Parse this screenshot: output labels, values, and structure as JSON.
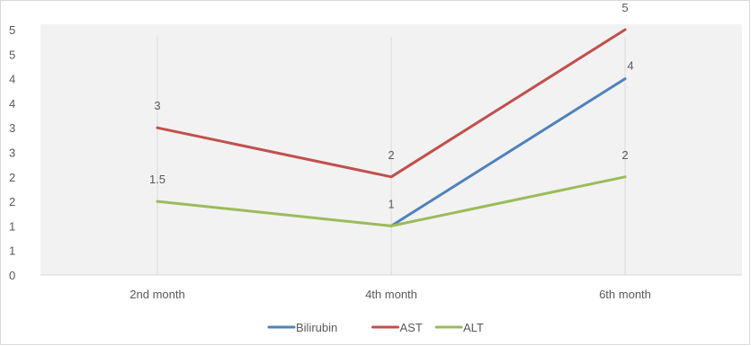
{
  "chart_data": {
    "type": "line",
    "title": "",
    "xlabel": "",
    "ylabel": "",
    "categories": [
      "2nd month",
      "4th month",
      "6th month"
    ],
    "y_tick_labels": [
      "0",
      "1",
      "1",
      "2",
      "2",
      "3",
      "3",
      "4",
      "4",
      "5",
      "5"
    ],
    "ylim": [
      0,
      5
    ],
    "grid": "vertical drop lines at categories",
    "legend_position": "bottom",
    "series": [
      {
        "name": "Bilirubin",
        "color": "#4f81bd",
        "values": [
          null,
          1,
          4
        ],
        "data_labels": [
          "",
          "",
          "4"
        ]
      },
      {
        "name": "AST",
        "color": "#c0504d",
        "values": [
          3,
          2,
          5
        ],
        "data_labels": [
          "3",
          "2",
          "5"
        ]
      },
      {
        "name": "ALT",
        "color": "#9bbb59",
        "values": [
          1.5,
          1,
          2
        ],
        "data_labels": [
          "1.5",
          "1",
          "2"
        ]
      }
    ]
  }
}
